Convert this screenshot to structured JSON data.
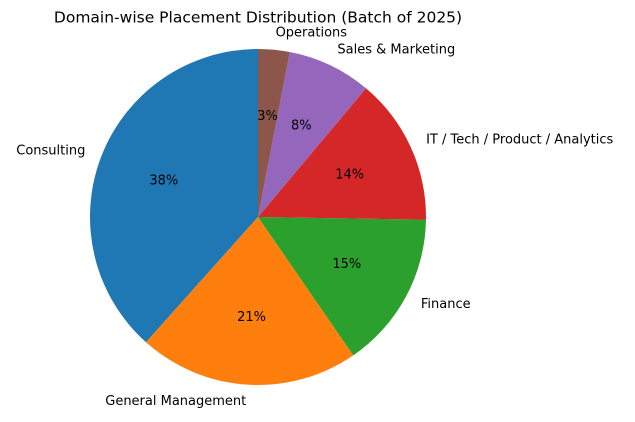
{
  "chart_data": {
    "type": "pie",
    "title": "Domain-wise Placement Distribution (Batch of 2025)",
    "categories": [
      "Consulting",
      "General Management",
      "Finance",
      "IT / Tech / Product / Analytics",
      "Sales & Marketing",
      "Operations"
    ],
    "values": [
      38,
      21,
      15,
      14,
      8,
      3
    ],
    "value_labels": [
      "38%",
      "21%",
      "15%",
      "14%",
      "8%",
      "3%"
    ],
    "colors": [
      "#1f77b4",
      "#ff7f0e",
      "#2ca02c",
      "#d62728",
      "#9467bd",
      "#8c564b"
    ]
  }
}
